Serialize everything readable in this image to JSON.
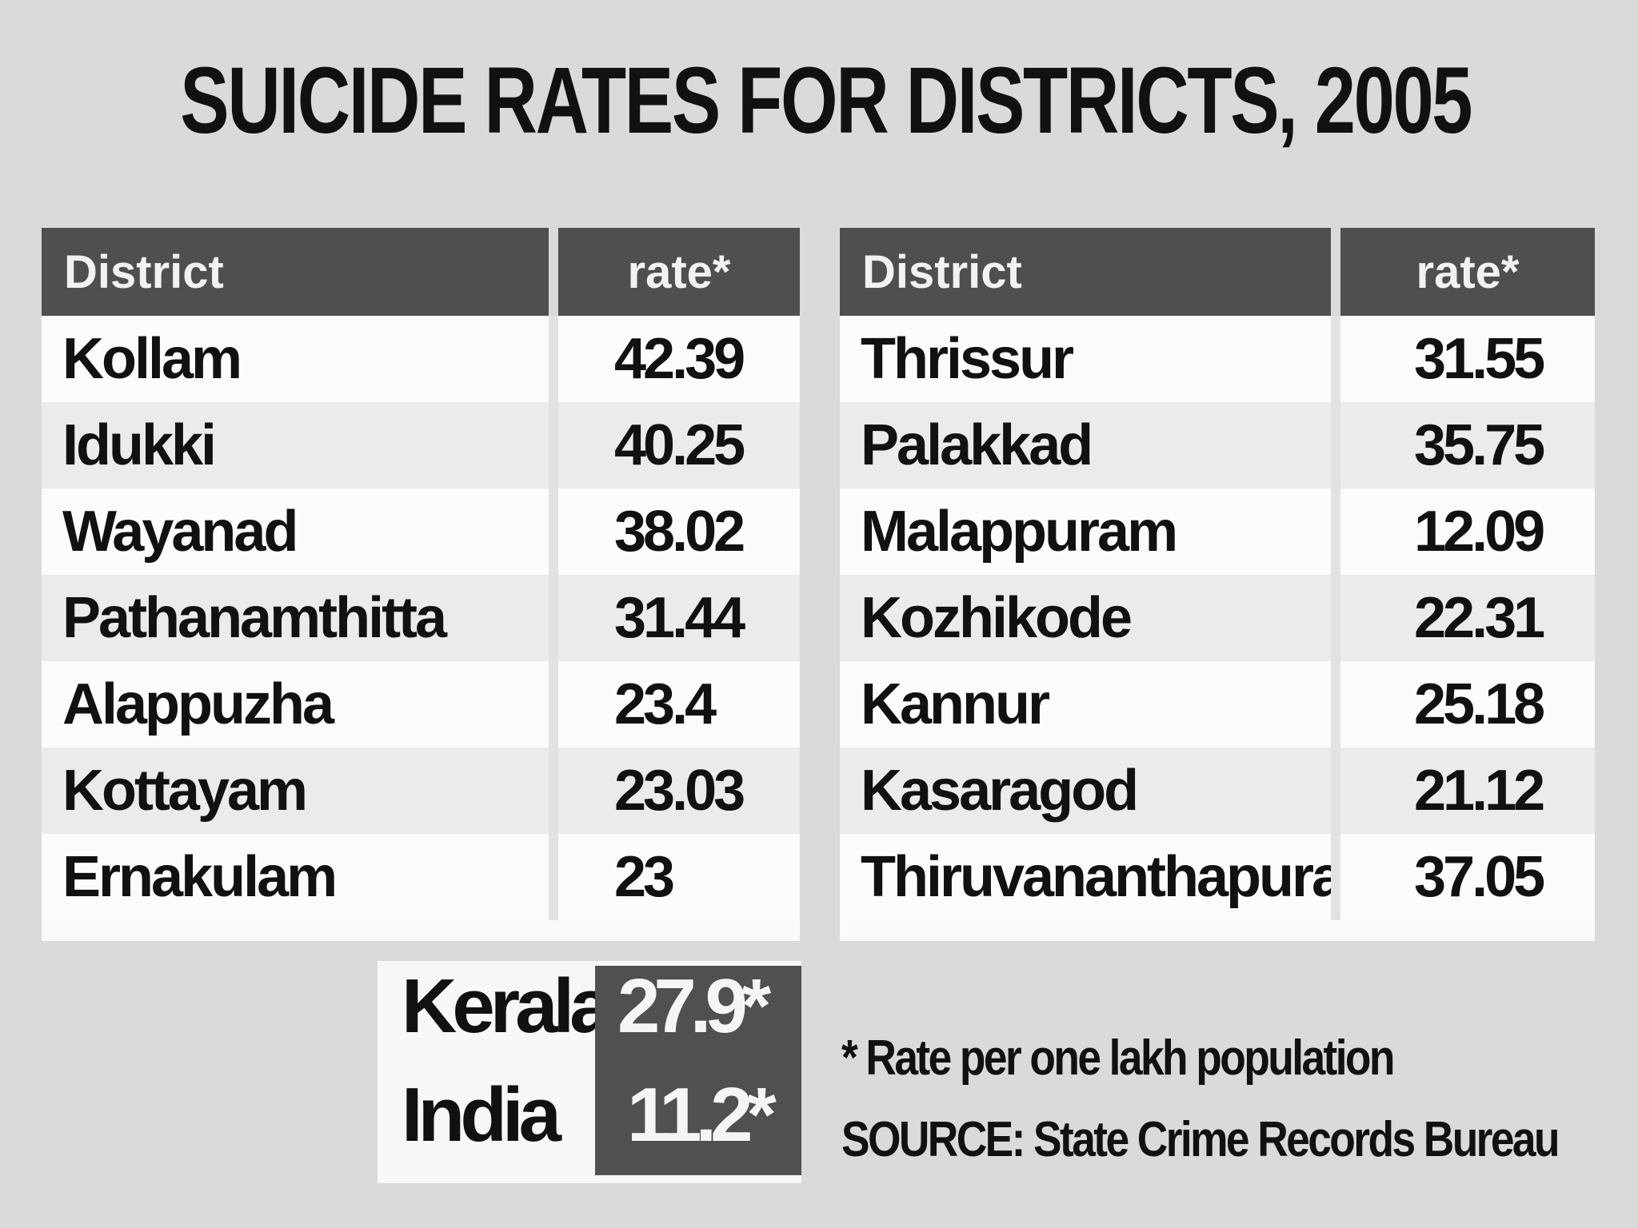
{
  "chart_data": {
    "type": "table",
    "title": "SUICIDE RATES FOR DISTRICTS, 2005",
    "columns": [
      "District",
      "rate*"
    ],
    "left_table": [
      {
        "district": "Kollam",
        "rate": "42.39"
      },
      {
        "district": "Idukki",
        "rate": "40.25"
      },
      {
        "district": "Wayanad",
        "rate": "38.02"
      },
      {
        "district": "Pathanamthitta",
        "rate": "31.44"
      },
      {
        "district": "Alappuzha",
        "rate": "23.4"
      },
      {
        "district": "Kottayam",
        "rate": "23.03"
      },
      {
        "district": "Ernakulam",
        "rate": "23"
      }
    ],
    "right_table": [
      {
        "district": "Thrissur",
        "rate": "31.55"
      },
      {
        "district": "Palakkad",
        "rate": "35.75"
      },
      {
        "district": "Malappuram",
        "rate": "12.09"
      },
      {
        "district": "Kozhikode",
        "rate": "22.31"
      },
      {
        "district": "Kannur",
        "rate": "25.18"
      },
      {
        "district": "Kasaragod",
        "rate": "21.12"
      },
      {
        "district": "Thiruvananthapuram",
        "rate": "37.05"
      }
    ],
    "summary": [
      {
        "label": "Kerala",
        "value": "27.9*"
      },
      {
        "label": "India",
        "value": "11.2*"
      }
    ],
    "footnote": "* Rate per one lakh population",
    "source": "SOURCE: State Crime Records Bureau"
  }
}
